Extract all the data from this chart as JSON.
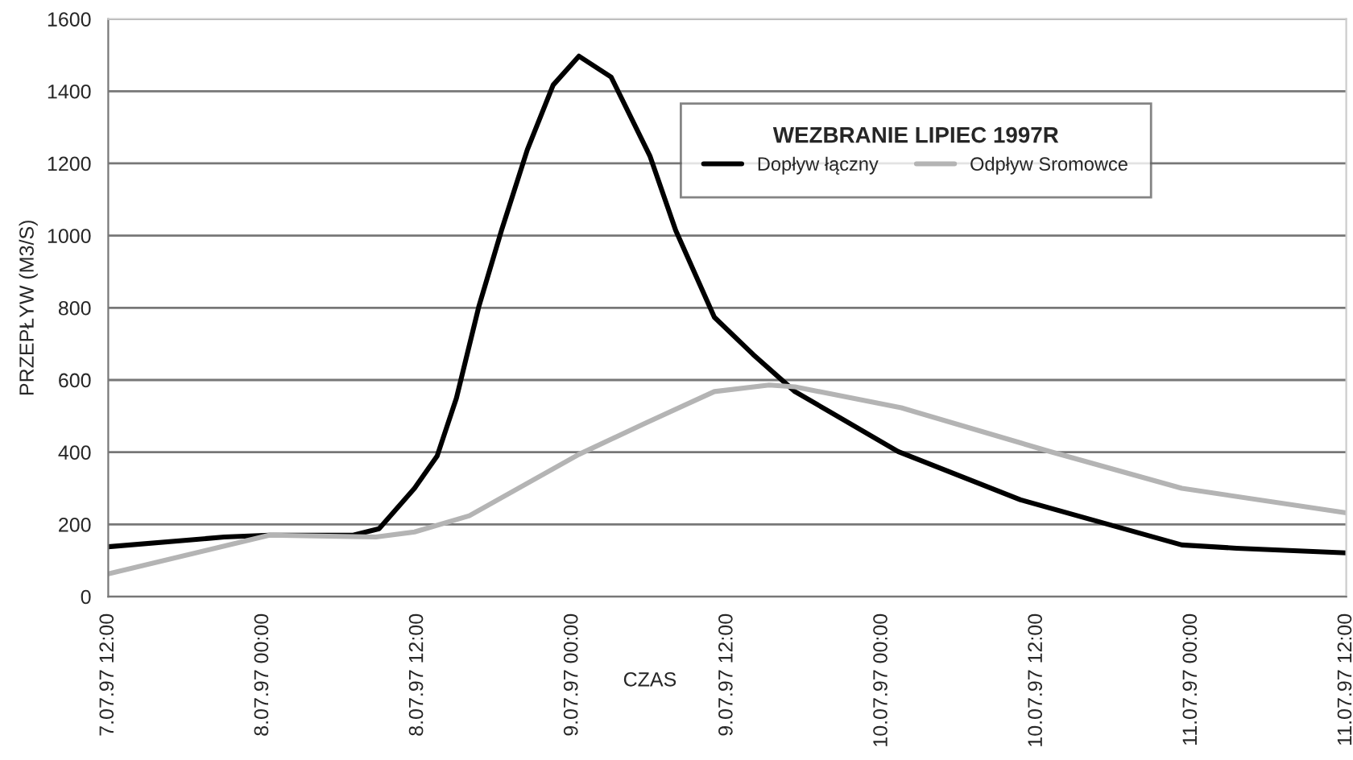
{
  "chart_data": {
    "type": "line",
    "legend_title": "WEZBRANIE LIPIEC 1997R",
    "xlabel": "CZAS",
    "ylabel": "PRZEPŁYW (M3/S)",
    "series": [
      {
        "name": "Dopływ łączny",
        "color": "#000000",
        "x": [
          "1997-07-07T12:00",
          "1997-07-07T21:00",
          "1997-07-08T00:30",
          "1997-07-08T07:00",
          "1997-07-08T09:00",
          "1997-07-08T11:45",
          "1997-07-08T13:30",
          "1997-07-08T15:00",
          "1997-07-08T16:45",
          "1997-07-08T18:30",
          "1997-07-08T20:30",
          "1997-07-08T22:30",
          "1997-07-09T00:30",
          "1997-07-09T03:00",
          "1997-07-09T06:00",
          "1997-07-09T08:00",
          "1997-07-09T11:00",
          "1997-07-09T14:00",
          "1997-07-09T17:15",
          "1997-07-10T01:15",
          "1997-07-10T10:45",
          "1997-07-10T23:15",
          "1997-07-11T03:30",
          "1997-07-11T12:00"
        ],
        "values": [
          138,
          165,
          170,
          170,
          188,
          300,
          389,
          550,
          805,
          1015,
          1238,
          1417,
          1497,
          1439,
          1221,
          1015,
          774,
          671,
          568,
          402,
          268,
          143,
          134,
          121
        ]
      },
      {
        "name": "Odpływ Sromowce",
        "color": "#b4b4b4",
        "x": [
          "1997-07-07T12:00",
          "1997-07-08T00:30",
          "1997-07-08T08:45",
          "1997-07-08T11:45",
          "1997-07-08T16:00",
          "1997-07-09T00:30",
          "1997-07-09T05:30",
          "1997-07-09T11:00",
          "1997-07-09T15:15",
          "1997-07-09T17:15",
          "1997-07-10T01:30",
          "1997-07-10T13:00",
          "1997-07-10T23:15",
          "1997-07-11T12:00"
        ],
        "values": [
          63,
          170,
          165,
          179,
          224,
          394,
          478,
          568,
          586,
          581,
          523,
          402,
          300,
          232
        ]
      }
    ],
    "xlim": [
      "1997-07-07T12:00",
      "1997-07-11T12:00"
    ],
    "xticks": [
      {
        "value": "1997-07-07T12:00",
        "label": "7.07.97 12:00"
      },
      {
        "value": "1997-07-08T00:00",
        "label": "8.07.97 00:00"
      },
      {
        "value": "1997-07-08T12:00",
        "label": "8.07.97 12:00"
      },
      {
        "value": "1997-07-09T00:00",
        "label": "9.07.97 00:00"
      },
      {
        "value": "1997-07-09T12:00",
        "label": "9.07.97 12:00"
      },
      {
        "value": "1997-07-10T00:00",
        "label": "10.07.97 00:00"
      },
      {
        "value": "1997-07-10T12:00",
        "label": "10.07.97 12:00"
      },
      {
        "value": "1997-07-11T00:00",
        "label": "11.07.97 00:00"
      },
      {
        "value": "1997-07-11T12:00",
        "label": "11.07.97 12:00"
      }
    ],
    "ylim": [
      0,
      1600
    ],
    "yticks": [
      0,
      200,
      400,
      600,
      800,
      1000,
      1200,
      1400,
      1600
    ],
    "grid": "y",
    "legend": "top right",
    "marker": "none",
    "line_style": "solid"
  }
}
